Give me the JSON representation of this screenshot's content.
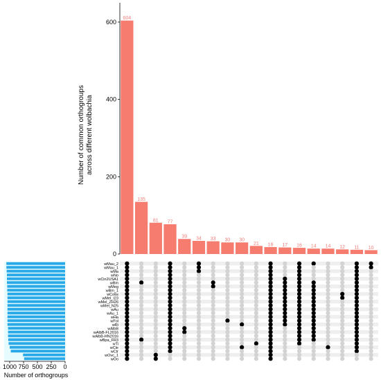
{
  "chart_data": {
    "type": "bar",
    "ylabel": "Number of common orthogroups across different wolbachia",
    "ylabel_lines": [
      "Number of common orthogroups",
      "across different wolbachia"
    ],
    "yticks": [
      "0",
      "200",
      "400",
      "600"
    ],
    "ylim": [
      0,
      650
    ],
    "bar_color": "#f57c6e",
    "values": [
      604,
      135,
      81,
      77,
      39,
      34,
      33,
      30,
      30,
      21,
      18,
      17,
      16,
      14,
      14,
      12,
      11,
      10
    ],
    "set_xlabel": "Number of orthogroups",
    "set_xticks": [
      "1000",
      "750",
      "500",
      "250",
      "0"
    ],
    "set_xlim": [
      1100,
      0
    ],
    "set_bar_color": "#29a9e8",
    "set_names": [
      "wMau_2",
      "wMau_1",
      "wMa",
      "wNo",
      "wCin2USA1",
      "wBm",
      "wMeg",
      "wBm_1",
      "wCobs",
      "wMel_I23",
      "wMel_ZH26",
      "wMel_N25",
      "wAu",
      "wAu_1",
      "wHa",
      "wFol",
      "wRi",
      "wAlbB",
      "wAlbB-FL2016",
      "wAlbB-HN2016",
      "wBpa_FR3",
      "wTi",
      "wCle",
      "wCtr",
      "wOvc_1",
      "wOo"
    ],
    "set_sizes": [
      1060,
      1060,
      1055,
      1050,
      1050,
      1050,
      1045,
      1045,
      1040,
      1040,
      1040,
      1040,
      1040,
      1040,
      1040,
      1040,
      1040,
      1030,
      1030,
      1030,
      1025,
      1020,
      1000,
      980,
      760,
      740
    ],
    "matrix": [
      [
        true,
        true,
        true,
        true,
        true,
        true,
        true,
        true,
        true,
        true,
        true,
        true,
        true,
        true,
        true,
        true,
        true,
        true,
        true,
        true,
        true,
        true,
        true,
        true,
        true,
        true
      ],
      [
        false,
        false,
        false,
        false,
        false,
        true,
        false,
        false,
        false,
        false,
        false,
        false,
        false,
        false,
        false,
        false,
        false,
        false,
        false,
        false,
        true,
        false,
        false,
        false,
        false,
        false
      ],
      [
        false,
        false,
        false,
        false,
        false,
        false,
        false,
        false,
        false,
        false,
        false,
        false,
        false,
        false,
        false,
        false,
        false,
        false,
        false,
        false,
        false,
        false,
        false,
        false,
        true,
        true
      ],
      [
        true,
        true,
        true,
        true,
        true,
        true,
        true,
        true,
        true,
        true,
        true,
        true,
        true,
        true,
        true,
        true,
        true,
        true,
        true,
        true,
        true,
        true,
        true,
        true,
        false,
        false
      ],
      [
        false,
        false,
        false,
        false,
        false,
        false,
        false,
        false,
        false,
        false,
        false,
        false,
        false,
        false,
        false,
        false,
        false,
        true,
        true,
        false,
        false,
        false,
        false,
        false,
        false,
        false
      ],
      [
        true,
        true,
        true,
        false,
        false,
        false,
        false,
        false,
        false,
        false,
        false,
        false,
        false,
        false,
        false,
        false,
        false,
        false,
        false,
        false,
        false,
        false,
        false,
        false,
        false,
        false
      ],
      [
        false,
        false,
        false,
        false,
        false,
        true,
        true,
        false,
        false,
        false,
        false,
        false,
        false,
        false,
        false,
        false,
        false,
        false,
        false,
        false,
        false,
        false,
        false,
        false,
        false,
        false
      ],
      [
        false,
        false,
        false,
        false,
        false,
        false,
        false,
        false,
        false,
        false,
        false,
        false,
        false,
        false,
        false,
        true,
        false,
        false,
        false,
        false,
        false,
        false,
        false,
        false,
        false,
        false
      ],
      [
        false,
        false,
        false,
        false,
        false,
        false,
        false,
        false,
        false,
        false,
        false,
        false,
        false,
        false,
        false,
        false,
        true,
        false,
        false,
        false,
        false,
        false,
        true,
        false,
        false,
        false
      ],
      [
        false,
        false,
        false,
        false,
        false,
        false,
        false,
        false,
        false,
        false,
        false,
        false,
        false,
        false,
        false,
        false,
        false,
        false,
        false,
        false,
        false,
        true,
        false,
        false,
        false,
        false
      ],
      [
        true,
        true,
        true,
        true,
        true,
        true,
        true,
        true,
        true,
        true,
        true,
        true,
        true,
        true,
        true,
        true,
        true,
        true,
        true,
        true,
        true,
        true,
        true,
        true,
        true,
        true
      ],
      [
        false,
        false,
        false,
        false,
        true,
        true,
        true,
        true,
        true,
        true,
        true,
        true,
        true,
        true,
        true,
        true,
        true,
        false,
        false,
        false,
        false,
        false,
        false,
        false,
        false,
        false
      ],
      [
        true,
        true,
        true,
        true,
        true,
        true,
        true,
        true,
        true,
        true,
        true,
        true,
        true,
        true,
        true,
        true,
        true,
        true,
        true,
        true,
        true,
        true,
        false,
        false,
        false,
        false
      ],
      [
        true,
        false,
        false,
        false,
        false,
        true,
        true,
        true,
        true,
        true,
        true,
        true,
        true,
        true,
        true,
        true,
        true,
        true,
        true,
        true,
        true,
        false,
        false,
        false,
        false,
        false
      ],
      [
        false,
        false,
        false,
        false,
        false,
        false,
        false,
        false,
        false,
        false,
        false,
        false,
        false,
        false,
        false,
        false,
        false,
        false,
        false,
        false,
        false,
        false,
        true,
        false,
        false,
        false
      ],
      [
        false,
        false,
        false,
        false,
        false,
        false,
        false,
        false,
        true,
        true,
        false,
        false,
        false,
        false,
        false,
        false,
        false,
        false,
        false,
        false,
        false,
        false,
        false,
        false,
        false,
        false
      ],
      [
        true,
        true,
        true,
        true,
        true,
        true,
        true,
        true,
        true,
        true,
        true,
        true,
        true,
        true,
        true,
        true,
        true,
        true,
        true,
        true,
        true,
        true,
        true,
        true,
        false,
        false
      ],
      [
        true,
        true,
        false,
        false,
        false,
        false,
        false,
        false,
        false,
        false,
        false,
        false,
        false,
        false,
        false,
        false,
        false,
        false,
        false,
        false,
        false,
        false,
        false,
        false,
        false,
        false
      ]
    ]
  }
}
